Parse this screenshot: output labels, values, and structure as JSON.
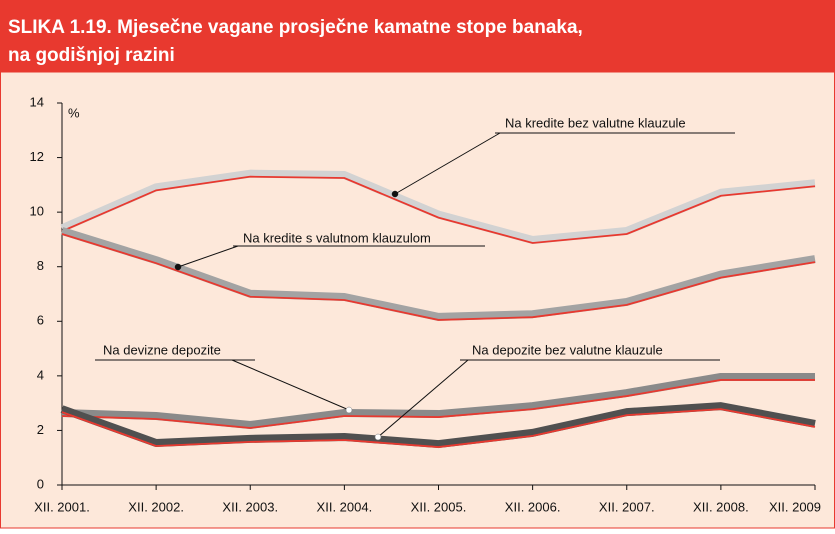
{
  "chart_data": {
    "type": "line",
    "title_lines": [
      "SLIKA 1.19. Mjesečne vagane prosječne kamatne stope banaka,",
      "na godišnjoj razini"
    ],
    "y_unit": "%",
    "categories": [
      "XII. 2001.",
      "XII. 2002.",
      "XII. 2003.",
      "XII. 2004.",
      "XII. 2005.",
      "XII. 2006.",
      "XII. 2007.",
      "XII. 2008.",
      "XII. 2009"
    ],
    "series": [
      {
        "name": "Na kredite bez valutne klauzule",
        "color": "#d2d2d2",
        "values": [
          9.3,
          10.8,
          11.3,
          11.25,
          9.8,
          8.87,
          9.2,
          10.6,
          10.95
        ]
      },
      {
        "name": "Na kredite s valutnom klauzulom",
        "color": "#a3a3a3",
        "values": [
          9.2,
          8.13,
          6.9,
          6.78,
          6.05,
          6.15,
          6.6,
          7.6,
          8.17
        ]
      },
      {
        "name": "Na devizne depozite",
        "color": "#8a8a8a",
        "values": [
          2.53,
          2.42,
          2.09,
          2.53,
          2.49,
          2.78,
          3.26,
          3.85,
          3.85
        ]
      },
      {
        "name": "Na depozite bez valutne klauzule",
        "color": "#505050",
        "values": [
          2.67,
          1.43,
          1.58,
          1.65,
          1.39,
          1.8,
          2.56,
          2.78,
          2.13
        ]
      }
    ],
    "shadow_color": "#e8392f",
    "ylim": [
      0,
      14
    ],
    "yticks": [
      0,
      2,
      4,
      6,
      8,
      10,
      12,
      14
    ]
  }
}
